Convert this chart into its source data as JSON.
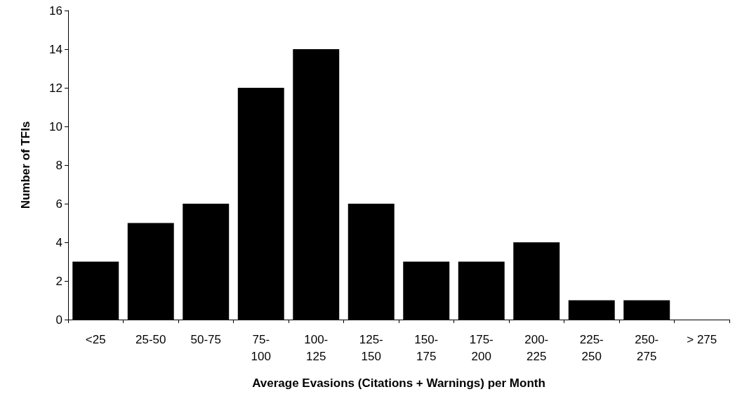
{
  "chart_data": {
    "type": "bar",
    "xlabel": "Average Evasions (Citations + Warnings) per Month",
    "ylabel": "Number of TFIs",
    "categories": [
      "<25",
      "25-50",
      "50-75",
      "75-100",
      "100-125",
      "125-150",
      "150-175",
      "175-200",
      "200-225",
      "225-250",
      "250-275",
      "> 275"
    ],
    "values": [
      3,
      5,
      6,
      12,
      14,
      6,
      3,
      3,
      4,
      1,
      1,
      0
    ],
    "color": "#000000",
    "ylim": [
      0,
      16
    ],
    "yticks": [
      0,
      2,
      4,
      6,
      8,
      10,
      12,
      14,
      16
    ],
    "grid": false
  }
}
